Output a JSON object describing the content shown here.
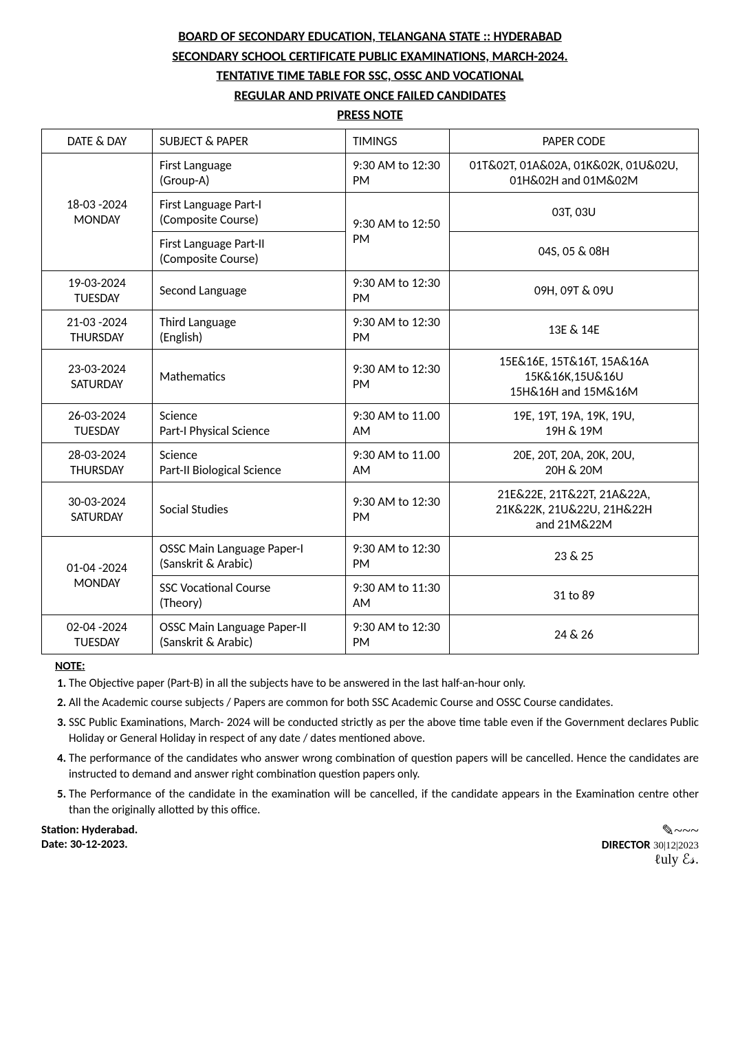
{
  "header": {
    "line1": "BOARD OF SECONDARY EDUCATION,   TELANGANA STATE :: HYDERABAD",
    "line2": "SECONDARY SCHOOL CERTIFICATE PUBLIC EXAMINATIONS, MARCH-2024.",
    "line3": "TENTATIVE TIME TABLE FOR SSC, OSSC AND VOCATIONAL",
    "line4": "REGULAR AND PRIVATE ONCE FAILED CANDIDATES",
    "line5": "PRESS NOTE"
  },
  "table": {
    "headers": {
      "date": "DATE & DAY",
      "subject": "SUBJECT & PAPER",
      "timing": "TIMINGS",
      "code": "PAPER CODE"
    },
    "rows": [
      {
        "date": "18-03 -2024\nMONDAY",
        "rowspan": 3,
        "subject": "First Language\n(Group-A)",
        "timing": "9:30 AM to 12:30 PM",
        "code": "01T&02T, 01A&02A, 01K&02K, 01U&02U,\n01H&02H and 01M&02M"
      },
      {
        "subject": "First Language Part-I\n(Composite Course)",
        "timing": "9:30 AM to 12:50 PM",
        "timing_rowspan": 2,
        "code": "03T, 03U"
      },
      {
        "subject": "First Language Part-II\n(Composite Course)",
        "code": "04S, 05 & 08H"
      },
      {
        "date": "19-03-2024\nTUESDAY",
        "subject": "Second Language",
        "timing": "9:30 AM to 12:30 PM",
        "code": "09H, 09T & 09U"
      },
      {
        "date": "21-03 -2024\nTHURSDAY",
        "subject": "Third Language\n(English)",
        "timing": "9:30 AM to 12:30 PM",
        "code": "13E & 14E"
      },
      {
        "date": "23-03-2024\nSATURDAY",
        "subject": "Mathematics",
        "timing": "9:30 AM to 12:30 PM",
        "code": "15E&16E, 15T&16T, 15A&16A\n15K&16K,15U&16U\n15H&16H and 15M&16M"
      },
      {
        "date": "26-03-2024\nTUESDAY",
        "subject": "Science\nPart-I Physical Science",
        "timing": "9:30 AM to 11.00 AM",
        "code": "19E, 19T, 19A, 19K, 19U,\n19H & 19M"
      },
      {
        "date": "28-03-2024\nTHURSDAY",
        "subject": "Science\nPart-II Biological Science",
        "timing": "9:30 AM to 11.00 AM",
        "code": "20E, 20T, 20A, 20K, 20U,\n20H & 20M"
      },
      {
        "date": "30-03-2024\nSATURDAY",
        "subject": "Social Studies",
        "timing": "9:30 AM to 12:30 PM",
        "code": "21E&22E, 21T&22T, 21A&22A,\n21K&22K, 21U&22U, 21H&22H\nand 21M&22M"
      },
      {
        "date": "01-04 -2024\nMONDAY",
        "rowspan": 2,
        "subject": "OSSC Main Language Paper-I\n(Sanskrit & Arabic)",
        "timing": "9:30 AM to 12:30 PM",
        "code": "23 & 25"
      },
      {
        "subject": "SSC Vocational Course\n(Theory)",
        "timing": "9:30 AM to 11:30 AM",
        "code": "31 to 89"
      },
      {
        "date": "02-04 -2024\nTUESDAY",
        "subject": "OSSC Main Language Paper-II\n(Sanskrit & Arabic)",
        "timing": "9:30 AM to 12:30 PM",
        "code": "24 & 26"
      }
    ]
  },
  "notes": {
    "title": "NOTE:",
    "items": [
      "The Objective paper (Part-B) in all the subjects have to be answered in the last half-an-hour only.",
      "All the Academic course subjects / Papers are common for both SSC Academic Course and OSSC Course candidates.",
      "SSC Public Examinations, March- 2024 will be conducted strictly as per the above time table even if the Government declares Public Holiday or General Holiday in respect of any date / dates mentioned above.",
      "The performance of the candidates who answer wrong combination of question papers will be cancelled. Hence the candidates are instructed to demand and answer right combination question papers only.",
      "The Performance of the candidate in the examination will be cancelled, if the candidate appears in the Examination centre other than the originally allotted by this office."
    ]
  },
  "footer": {
    "station": "Station: Hyderabad.",
    "date": "Date: 30-12-2023.",
    "director": "DIRECTOR",
    "sigdate": "30|12|2023"
  }
}
